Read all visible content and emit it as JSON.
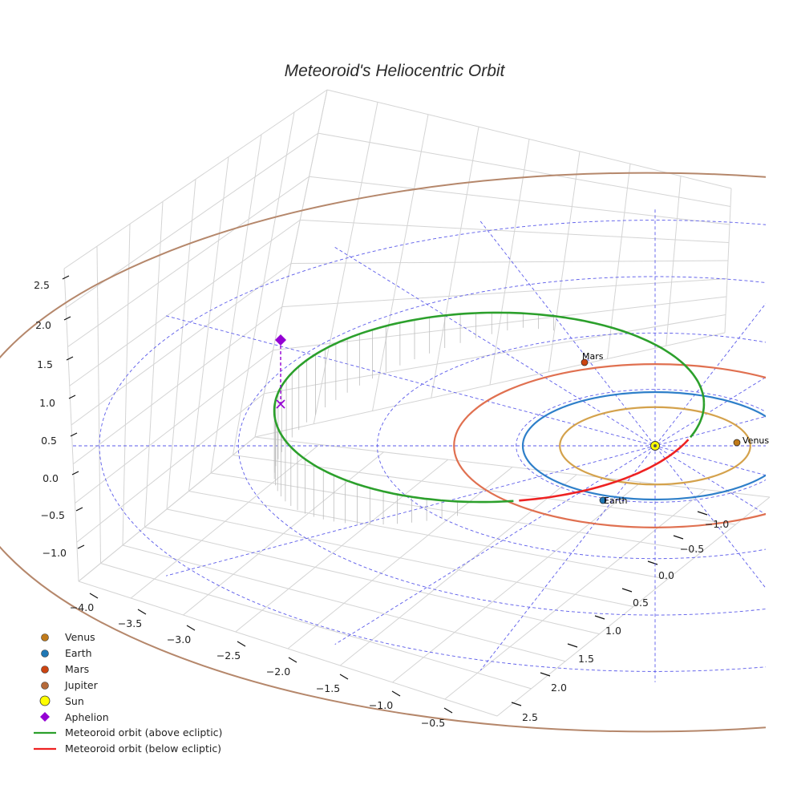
{
  "chart_data": {
    "type": "3d-line",
    "title": "Meteoroid's Heliocentric Orbit",
    "x_ticks": [
      "−4.0",
      "−3.5",
      "−3.0",
      "−2.5",
      "−2.0",
      "−1.5",
      "−1.0",
      "−0.5"
    ],
    "y_ticks": [
      "−1.0",
      "−0.5",
      "0.0",
      "0.5",
      "1.0",
      "1.5",
      "2.0",
      "2.5"
    ],
    "z_ticks": [
      "2.5",
      "2.0",
      "1.5",
      "1.0",
      "0.5",
      "0.0",
      "−0.5",
      "−1.0"
    ],
    "planets": [
      {
        "name": "Venus",
        "orbit_radius_au": 0.72,
        "color": "#d4a24c",
        "marker_color": "#c07a1a"
      },
      {
        "name": "Earth",
        "orbit_radius_au": 1.0,
        "color": "#2e7fc9",
        "marker_color": "#1f77b4"
      },
      {
        "name": "Mars",
        "orbit_radius_au": 1.52,
        "color": "#e07050",
        "marker_color": "#cc4411"
      },
      {
        "name": "Jupiter",
        "orbit_radius_au": 5.2,
        "color": "#b5876b",
        "marker_color": "#b56a3a"
      }
    ],
    "sun": {
      "name": "Sun",
      "color": "#ffff00"
    },
    "aphelion": {
      "name": "Aphelion",
      "color": "#9400d3"
    },
    "series": [
      {
        "name": "Meteoroid orbit (above ecliptic)",
        "color": "#2ca02c"
      },
      {
        "name": "Meteoroid orbit (below ecliptic)",
        "color": "#ee2222"
      }
    ],
    "legend": [
      "Venus",
      "Earth",
      "Mars",
      "Jupiter",
      "Sun",
      "Aphelion",
      "Meteoroid orbit (above ecliptic)",
      "Meteoroid orbit (below ecliptic)"
    ]
  }
}
